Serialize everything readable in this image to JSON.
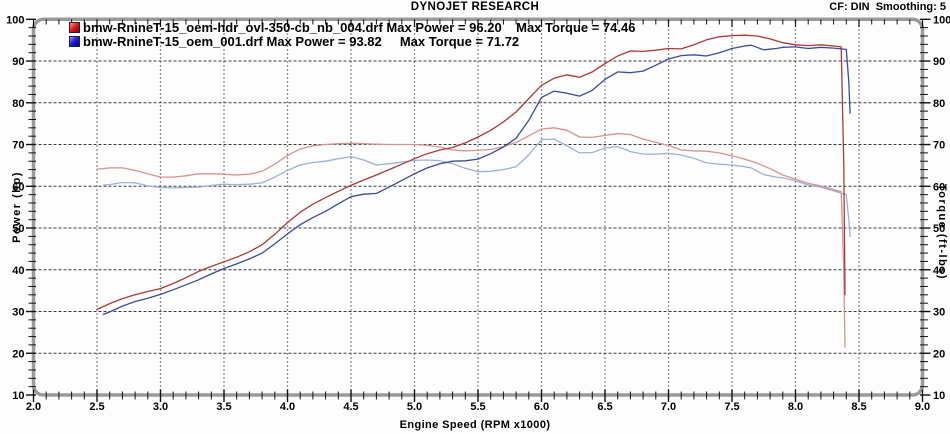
{
  "header": {
    "title": "DYNOJET RESEARCH",
    "correction": "CF: DIN  Smoothing: 5"
  },
  "legend": [
    {
      "file": "bmw-RnineT-15_oem-hdr_ovl-350-cb_nb_004.drf",
      "max_power": "96.20",
      "max_torque": "74.46",
      "label": "bmw-RnineT-15_oem-hdr_ovl-350-cb_nb_004.drf Max Power = 96.20    Max Torque = 74.46",
      "color": "#e02020"
    },
    {
      "file": "bmw-RnineT-15_oem_001.drf",
      "max_power": "93.82",
      "max_torque": "71.72",
      "label": "bmw-RnineT-15_oem_001.drf Max Power = 93.82     Max Torque = 71.72",
      "color": "#2020e0"
    }
  ],
  "chart_data": {
    "type": "line",
    "title": "DYNOJET RESEARCH",
    "xlabel": "Engine Speed (RPM x1000)",
    "ylabel_left": "Power (hp)",
    "ylabel_right": "Torque (ft-lbs)",
    "xlim": [
      2.0,
      9.0
    ],
    "ylim": [
      10,
      100
    ],
    "grid": true,
    "legend_position": "top-left",
    "xticks": [
      "2.0",
      "2.5",
      "3.0",
      "3.5",
      "4.0",
      "4.5",
      "5.0",
      "5.5",
      "6.0",
      "6.5",
      "7.0",
      "7.5",
      "8.0",
      "8.5",
      "9.0"
    ],
    "yticks": [
      "10",
      "20",
      "30",
      "40",
      "50",
      "60",
      "70",
      "80",
      "90",
      "100"
    ],
    "colors": {
      "red_power": "#a83a36",
      "blue_power": "#3c4a99",
      "red_torque": "#d49391",
      "blue_torque": "#9fafd6",
      "grid_h": "#3a3a3a",
      "grid_v": "#8f8f8f",
      "frame": "#9a9a9a",
      "tick": "#111111"
    },
    "series": [
      {
        "id": "curve-red-torque",
        "name": "red torque (ft-lbs)",
        "axis": "right",
        "color": "#d49391",
        "points": [
          [
            2.5,
            64.1
          ],
          [
            2.6,
            64.4
          ],
          [
            2.7,
            64.4
          ],
          [
            2.8,
            63.8
          ],
          [
            2.9,
            63.0
          ],
          [
            3.0,
            62.2
          ],
          [
            3.1,
            62.2
          ],
          [
            3.2,
            62.5
          ],
          [
            3.3,
            63.0
          ],
          [
            3.4,
            63.0
          ],
          [
            3.5,
            62.9
          ],
          [
            3.6,
            62.7
          ],
          [
            3.7,
            62.9
          ],
          [
            3.8,
            63.6
          ],
          [
            3.9,
            65.3
          ],
          [
            4.0,
            67.4
          ],
          [
            4.1,
            68.9
          ],
          [
            4.2,
            69.7
          ],
          [
            4.3,
            70.0
          ],
          [
            4.4,
            70.2
          ],
          [
            4.5,
            70.3
          ],
          [
            4.6,
            70.2
          ],
          [
            4.7,
            70.1
          ],
          [
            4.8,
            70.0
          ],
          [
            4.9,
            70.0
          ],
          [
            5.0,
            70.0
          ],
          [
            5.1,
            69.8
          ],
          [
            5.2,
            69.4
          ],
          [
            5.3,
            68.7
          ],
          [
            5.4,
            68.5
          ],
          [
            5.5,
            68.6
          ],
          [
            5.6,
            68.8
          ],
          [
            5.7,
            69.5
          ],
          [
            5.8,
            70.5
          ],
          [
            5.9,
            72.1
          ],
          [
            6.0,
            73.7
          ],
          [
            6.1,
            74.0
          ],
          [
            6.2,
            73.4
          ],
          [
            6.3,
            71.8
          ],
          [
            6.4,
            71.7
          ],
          [
            6.5,
            72.2
          ],
          [
            6.6,
            72.6
          ],
          [
            6.7,
            72.4
          ],
          [
            6.8,
            71.3
          ],
          [
            6.9,
            70.5
          ],
          [
            7.0,
            69.8
          ],
          [
            7.1,
            68.7
          ],
          [
            7.2,
            68.5
          ],
          [
            7.3,
            68.4
          ],
          [
            7.4,
            68.0
          ],
          [
            7.5,
            67.3
          ],
          [
            7.6,
            66.5
          ],
          [
            7.7,
            65.5
          ],
          [
            7.8,
            64.2
          ],
          [
            7.9,
            62.7
          ],
          [
            8.0,
            61.7
          ],
          [
            8.1,
            60.7
          ],
          [
            8.2,
            60.1
          ],
          [
            8.3,
            59.2
          ],
          [
            8.36,
            58.7
          ],
          [
            8.38,
            40.0
          ],
          [
            8.39,
            21.5
          ]
        ]
      },
      {
        "id": "curve-blue-torque",
        "name": "blue torque (ft-lbs)",
        "axis": "right",
        "color": "#9fafd6",
        "points": [
          [
            2.55,
            60.3
          ],
          [
            2.6,
            60.4
          ],
          [
            2.7,
            60.9
          ],
          [
            2.8,
            60.8
          ],
          [
            2.9,
            60.1
          ],
          [
            3.0,
            59.7
          ],
          [
            3.1,
            59.6
          ],
          [
            3.2,
            59.7
          ],
          [
            3.3,
            59.8
          ],
          [
            3.4,
            60.2
          ],
          [
            3.5,
            60.5
          ],
          [
            3.6,
            60.4
          ],
          [
            3.7,
            60.5
          ],
          [
            3.8,
            60.8
          ],
          [
            3.9,
            62.2
          ],
          [
            4.0,
            63.8
          ],
          [
            4.1,
            65.1
          ],
          [
            4.2,
            65.7
          ],
          [
            4.3,
            66.0
          ],
          [
            4.4,
            66.6
          ],
          [
            4.5,
            67.1
          ],
          [
            4.6,
            66.3
          ],
          [
            4.7,
            65.1
          ],
          [
            4.8,
            65.4
          ],
          [
            4.9,
            65.8
          ],
          [
            5.0,
            66.2
          ],
          [
            5.1,
            66.3
          ],
          [
            5.2,
            66.1
          ],
          [
            5.3,
            65.4
          ],
          [
            5.4,
            64.3
          ],
          [
            5.5,
            63.5
          ],
          [
            5.6,
            63.6
          ],
          [
            5.7,
            64.0
          ],
          [
            5.8,
            64.7
          ],
          [
            5.9,
            67.5
          ],
          [
            6.0,
            71.2
          ],
          [
            6.1,
            71.3
          ],
          [
            6.2,
            69.7
          ],
          [
            6.3,
            68.0
          ],
          [
            6.4,
            68.1
          ],
          [
            6.5,
            69.2
          ],
          [
            6.6,
            69.5
          ],
          [
            6.7,
            68.3
          ],
          [
            6.8,
            67.7
          ],
          [
            6.9,
            67.7
          ],
          [
            7.0,
            67.9
          ],
          [
            7.1,
            67.5
          ],
          [
            7.2,
            66.7
          ],
          [
            7.3,
            65.6
          ],
          [
            7.4,
            65.3
          ],
          [
            7.5,
            65.1
          ],
          [
            7.6,
            64.7
          ],
          [
            7.65,
            64.4
          ],
          [
            7.75,
            62.8
          ],
          [
            7.85,
            62.2
          ],
          [
            7.9,
            62.0
          ],
          [
            8.0,
            61.3
          ],
          [
            8.1,
            60.3
          ],
          [
            8.2,
            59.8
          ],
          [
            8.3,
            58.9
          ],
          [
            8.4,
            58.0
          ],
          [
            8.42,
            52.0
          ],
          [
            8.43,
            48.0
          ]
        ]
      },
      {
        "id": "curve-red-power",
        "name": "red power (hp)",
        "axis": "left",
        "color": "#a83a36",
        "points": [
          [
            2.5,
            30.5
          ],
          [
            2.6,
            31.9
          ],
          [
            2.7,
            33.1
          ],
          [
            2.8,
            34.0
          ],
          [
            2.9,
            34.8
          ],
          [
            3.0,
            35.5
          ],
          [
            3.1,
            36.7
          ],
          [
            3.2,
            38.1
          ],
          [
            3.3,
            39.6
          ],
          [
            3.4,
            40.8
          ],
          [
            3.5,
            41.9
          ],
          [
            3.6,
            43.0
          ],
          [
            3.7,
            44.3
          ],
          [
            3.8,
            46.0
          ],
          [
            3.9,
            48.5
          ],
          [
            4.0,
            51.3
          ],
          [
            4.1,
            53.8
          ],
          [
            4.2,
            55.7
          ],
          [
            4.3,
            57.3
          ],
          [
            4.4,
            58.8
          ],
          [
            4.5,
            60.2
          ],
          [
            4.6,
            61.5
          ],
          [
            4.7,
            62.7
          ],
          [
            4.8,
            64.0
          ],
          [
            4.9,
            65.3
          ],
          [
            5.0,
            66.6
          ],
          [
            5.1,
            67.8
          ],
          [
            5.2,
            68.7
          ],
          [
            5.3,
            69.3
          ],
          [
            5.4,
            70.4
          ],
          [
            5.5,
            71.8
          ],
          [
            5.6,
            73.4
          ],
          [
            5.7,
            75.4
          ],
          [
            5.8,
            77.8
          ],
          [
            5.9,
            81.0
          ],
          [
            6.0,
            84.2
          ],
          [
            6.1,
            85.9
          ],
          [
            6.2,
            86.7
          ],
          [
            6.3,
            86.1
          ],
          [
            6.4,
            87.4
          ],
          [
            6.5,
            89.4
          ],
          [
            6.6,
            91.2
          ],
          [
            6.7,
            92.4
          ],
          [
            6.8,
            92.3
          ],
          [
            6.9,
            92.6
          ],
          [
            7.0,
            93.0
          ],
          [
            7.1,
            92.9
          ],
          [
            7.2,
            93.9
          ],
          [
            7.3,
            95.1
          ],
          [
            7.4,
            95.8
          ],
          [
            7.5,
            96.1
          ],
          [
            7.6,
            96.2
          ],
          [
            7.7,
            96.0
          ],
          [
            7.8,
            95.3
          ],
          [
            7.9,
            94.4
          ],
          [
            8.0,
            93.9
          ],
          [
            8.1,
            93.7
          ],
          [
            8.2,
            93.9
          ],
          [
            8.3,
            93.6
          ],
          [
            8.36,
            93.4
          ],
          [
            8.38,
            65.0
          ],
          [
            8.39,
            34.0
          ]
        ]
      },
      {
        "id": "curve-blue-power",
        "name": "blue power (hp)",
        "axis": "left",
        "color": "#3c4a99",
        "points": [
          [
            2.55,
            29.3
          ],
          [
            2.6,
            29.9
          ],
          [
            2.7,
            31.3
          ],
          [
            2.8,
            32.4
          ],
          [
            2.9,
            33.2
          ],
          [
            3.0,
            34.1
          ],
          [
            3.1,
            35.2
          ],
          [
            3.2,
            36.4
          ],
          [
            3.3,
            37.6
          ],
          [
            3.4,
            39.0
          ],
          [
            3.5,
            40.3
          ],
          [
            3.6,
            41.4
          ],
          [
            3.7,
            42.6
          ],
          [
            3.8,
            44.0
          ],
          [
            3.9,
            46.2
          ],
          [
            4.0,
            48.6
          ],
          [
            4.1,
            50.8
          ],
          [
            4.2,
            52.5
          ],
          [
            4.3,
            54.0
          ],
          [
            4.4,
            55.8
          ],
          [
            4.5,
            57.5
          ],
          [
            4.6,
            58.1
          ],
          [
            4.7,
            58.3
          ],
          [
            4.8,
            59.8
          ],
          [
            4.9,
            61.4
          ],
          [
            5.0,
            63.0
          ],
          [
            5.1,
            64.4
          ],
          [
            5.2,
            65.4
          ],
          [
            5.3,
            66.0
          ],
          [
            5.4,
            66.1
          ],
          [
            5.5,
            66.5
          ],
          [
            5.6,
            67.8
          ],
          [
            5.7,
            69.4
          ],
          [
            5.8,
            71.5
          ],
          [
            5.9,
            75.8
          ],
          [
            6.0,
            81.3
          ],
          [
            6.1,
            82.8
          ],
          [
            6.2,
            82.3
          ],
          [
            6.3,
            81.6
          ],
          [
            6.4,
            83.0
          ],
          [
            6.5,
            85.6
          ],
          [
            6.6,
            87.4
          ],
          [
            6.7,
            87.2
          ],
          [
            6.8,
            87.6
          ],
          [
            6.9,
            89.0
          ],
          [
            7.0,
            90.5
          ],
          [
            7.1,
            91.3
          ],
          [
            7.2,
            91.5
          ],
          [
            7.3,
            91.2
          ],
          [
            7.4,
            92.0
          ],
          [
            7.5,
            93.0
          ],
          [
            7.6,
            93.6
          ],
          [
            7.65,
            93.8
          ],
          [
            7.75,
            92.7
          ],
          [
            7.85,
            93.0
          ],
          [
            7.9,
            93.3
          ],
          [
            8.0,
            93.4
          ],
          [
            8.1,
            93.0
          ],
          [
            8.2,
            93.3
          ],
          [
            8.3,
            93.1
          ],
          [
            8.4,
            92.8
          ],
          [
            8.42,
            85.0
          ],
          [
            8.43,
            77.5
          ]
        ]
      }
    ]
  }
}
